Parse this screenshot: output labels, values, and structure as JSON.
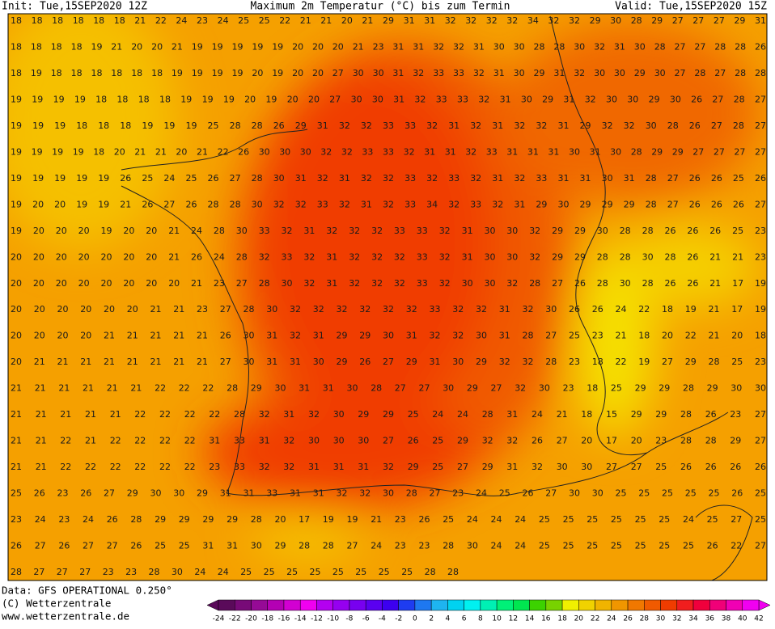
{
  "header": {
    "init": "Init: Tue,15SEP2020 12Z",
    "title": "Maximum 2m Temperatur (°C) bis zum Termin",
    "valid": "Valid: Tue,15SEP2020 15Z"
  },
  "map": {
    "rows": [
      [
        18,
        18,
        18,
        18,
        18,
        18,
        21,
        22,
        24,
        23,
        24,
        25,
        25,
        22,
        21,
        21,
        20,
        21,
        29,
        31,
        31,
        32,
        32,
        32,
        32,
        34,
        32,
        32,
        29,
        30,
        28,
        29,
        27,
        27,
        27,
        29,
        31
      ],
      [
        18,
        18,
        18,
        18,
        19,
        21,
        20,
        20,
        21,
        19,
        19,
        19,
        19,
        19,
        20,
        20,
        20,
        21,
        23,
        31,
        31,
        32,
        32,
        31,
        30,
        30,
        28,
        28,
        30,
        32,
        31,
        30,
        28,
        27,
        27,
        28,
        28,
        26
      ],
      [
        18,
        19,
        18,
        18,
        18,
        18,
        18,
        18,
        19,
        19,
        19,
        19,
        20,
        19,
        20,
        20,
        27,
        30,
        30,
        31,
        32,
        33,
        33,
        32,
        31,
        30,
        29,
        31,
        32,
        30,
        30,
        29,
        30,
        27,
        28,
        27,
        28,
        28
      ],
      [
        19,
        19,
        19,
        19,
        18,
        18,
        18,
        18,
        19,
        19,
        19,
        20,
        19,
        20,
        20,
        27,
        30,
        30,
        31,
        32,
        33,
        33,
        32,
        31,
        30,
        29,
        31,
        32,
        30,
        30,
        29,
        30,
        26,
        27,
        28,
        27
      ],
      [
        19,
        19,
        19,
        18,
        18,
        18,
        19,
        19,
        19,
        25,
        28,
        28,
        26,
        29,
        31,
        32,
        32,
        33,
        33,
        32,
        31,
        32,
        31,
        32,
        32,
        31,
        29,
        32,
        32,
        30,
        28,
        26,
        27,
        28,
        27
      ],
      [
        19,
        19,
        19,
        19,
        18,
        20,
        21,
        21,
        20,
        21,
        22,
        26,
        30,
        30,
        30,
        32,
        32,
        33,
        33,
        32,
        31,
        31,
        32,
        33,
        31,
        31,
        31,
        30,
        31,
        30,
        28,
        29,
        29,
        27,
        27,
        27,
        27
      ],
      [
        19,
        19,
        19,
        19,
        19,
        26,
        25,
        24,
        25,
        26,
        27,
        28,
        30,
        31,
        32,
        31,
        32,
        32,
        33,
        32,
        33,
        32,
        31,
        32,
        33,
        31,
        31,
        30,
        31,
        28,
        27,
        26,
        26,
        25,
        26
      ],
      [
        19,
        20,
        20,
        19,
        19,
        21,
        26,
        27,
        26,
        28,
        28,
        30,
        32,
        32,
        33,
        32,
        31,
        32,
        33,
        34,
        32,
        33,
        32,
        31,
        29,
        30,
        29,
        29,
        29,
        28,
        27,
        26,
        26,
        26,
        27
      ],
      [
        19,
        20,
        20,
        20,
        19,
        20,
        20,
        21,
        24,
        28,
        30,
        33,
        32,
        31,
        32,
        32,
        32,
        33,
        33,
        32,
        31,
        30,
        30,
        32,
        29,
        29,
        30,
        28,
        28,
        26,
        26,
        26,
        25,
        23
      ],
      [
        20,
        20,
        20,
        20,
        20,
        20,
        20,
        21,
        26,
        24,
        28,
        32,
        33,
        32,
        31,
        32,
        32,
        32,
        33,
        32,
        31,
        30,
        30,
        32,
        29,
        29,
        28,
        28,
        30,
        28,
        26,
        21,
        21,
        23
      ],
      [
        20,
        20,
        20,
        20,
        20,
        20,
        20,
        20,
        21,
        23,
        27,
        28,
        30,
        32,
        31,
        32,
        32,
        32,
        33,
        32,
        30,
        30,
        32,
        28,
        27,
        26,
        28,
        30,
        28,
        26,
        26,
        21,
        17,
        19
      ],
      [
        20,
        20,
        20,
        20,
        20,
        20,
        21,
        21,
        23,
        27,
        28,
        30,
        32,
        32,
        32,
        32,
        32,
        32,
        33,
        32,
        32,
        31,
        32,
        30,
        26,
        26,
        24,
        22,
        18,
        19,
        21,
        17,
        19
      ],
      [
        20,
        20,
        20,
        20,
        21,
        21,
        21,
        21,
        21,
        26,
        30,
        31,
        32,
        31,
        29,
        29,
        30,
        31,
        32,
        32,
        30,
        31,
        28,
        27,
        25,
        23,
        21,
        18,
        20,
        22,
        21,
        20,
        18
      ],
      [
        20,
        21,
        21,
        21,
        21,
        21,
        21,
        21,
        21,
        27,
        30,
        31,
        31,
        30,
        29,
        26,
        27,
        29,
        31,
        30,
        29,
        32,
        32,
        28,
        23,
        18,
        22,
        19,
        27,
        29,
        28,
        25,
        23
      ],
      [
        21,
        21,
        21,
        21,
        21,
        21,
        22,
        22,
        22,
        28,
        29,
        30,
        31,
        31,
        30,
        28,
        27,
        27,
        30,
        29,
        27,
        32,
        30,
        23,
        18,
        25,
        29,
        29,
        28,
        29,
        30,
        30
      ],
      [
        21,
        21,
        21,
        21,
        21,
        22,
        22,
        22,
        22,
        28,
        32,
        31,
        32,
        30,
        29,
        29,
        25,
        24,
        24,
        28,
        31,
        24,
        21,
        18,
        15,
        29,
        29,
        28,
        26,
        23,
        27
      ],
      [
        21,
        21,
        22,
        21,
        22,
        22,
        22,
        22,
        31,
        33,
        31,
        32,
        30,
        30,
        30,
        27,
        26,
        25,
        29,
        32,
        32,
        26,
        27,
        20,
        17,
        20,
        23,
        28,
        28,
        29,
        27
      ],
      [
        21,
        21,
        22,
        22,
        22,
        22,
        22,
        22,
        23,
        33,
        32,
        32,
        31,
        31,
        31,
        32,
        29,
        25,
        27,
        29,
        31,
        32,
        30,
        30,
        27,
        27,
        25,
        26,
        26,
        26,
        26
      ],
      [
        25,
        26,
        23,
        26,
        27,
        29,
        30,
        30,
        29,
        31,
        31,
        33,
        31,
        31,
        32,
        32,
        30,
        28,
        27,
        23,
        24,
        25,
        26,
        27,
        30,
        30,
        25,
        25,
        25,
        25,
        25,
        26,
        25
      ],
      [
        23,
        24,
        23,
        24,
        26,
        28,
        29,
        29,
        29,
        29,
        28,
        20,
        17,
        19,
        19,
        21,
        23,
        26,
        25,
        24,
        24,
        24,
        25,
        25,
        25,
        25,
        25,
        25,
        24,
        25,
        27,
        25
      ],
      [
        26,
        27,
        26,
        27,
        27,
        26,
        25,
        25,
        31,
        31,
        30,
        29,
        28,
        28,
        27,
        24,
        23,
        23,
        28,
        30,
        24,
        24,
        25,
        25,
        25,
        25,
        25,
        25,
        25,
        26,
        22,
        27
      ],
      [
        28,
        27,
        27,
        27,
        23,
        23,
        28,
        30,
        24,
        24,
        25,
        25,
        25,
        25,
        25,
        25,
        25,
        25,
        28,
        28
      ]
    ]
  },
  "footer": {
    "data": "Data: GFS OPERATIONAL 0.250°",
    "copyright": "(C) Wetterzentrale",
    "url": "www.wetterzentrale.de"
  },
  "legend": {
    "ticks": [
      -24,
      -22,
      -20,
      -18,
      -16,
      -14,
      -12,
      -10,
      -8,
      -6,
      -4,
      -2,
      0,
      2,
      4,
      6,
      8,
      10,
      12,
      14,
      16,
      18,
      20,
      22,
      24,
      26,
      28,
      30,
      32,
      34,
      36,
      38,
      40,
      42
    ],
    "colors": [
      "#5a0a5a",
      "#780a78",
      "#960a96",
      "#b400b4",
      "#d200d2",
      "#f000f0",
      "#b400f0",
      "#9600f0",
      "#7800f0",
      "#5a00f0",
      "#3c00f0",
      "#1e3cf0",
      "#1e78f0",
      "#1eb4f0",
      "#00d2f0",
      "#00f0f0",
      "#00f0b4",
      "#00f078",
      "#00e650",
      "#3cd200",
      "#78d200",
      "#f0f000",
      "#f0d200",
      "#f0b400",
      "#f09600",
      "#f07800",
      "#f05a00",
      "#f03c00",
      "#f01e1e",
      "#f0003c",
      "#f00078",
      "#f000b4",
      "#f000f0"
    ]
  }
}
